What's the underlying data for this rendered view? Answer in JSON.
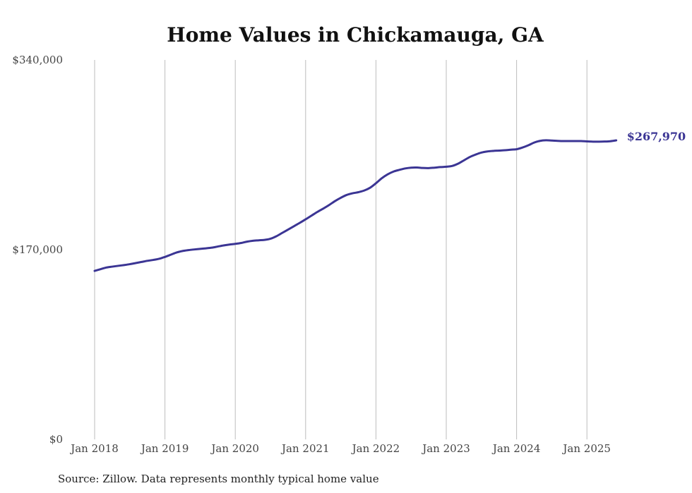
{
  "chart_data": {
    "type": "line",
    "title": "Home Values in Chickamauga, GA",
    "xlabel": "",
    "ylabel": "",
    "source": "Source: Zillow. Data represents monthly typical home value",
    "ylim": [
      0,
      340000
    ],
    "y_ticks": [
      {
        "value": 0,
        "label": "$0"
      },
      {
        "value": 170000,
        "label": "$170,000"
      },
      {
        "value": 340000,
        "label": "$340,000"
      }
    ],
    "xlim": [
      "2018-01",
      "2025-06"
    ],
    "x_ticks": [
      {
        "value": "2018-01",
        "label": "Jan 2018"
      },
      {
        "value": "2019-01",
        "label": "Jan 2019"
      },
      {
        "value": "2020-01",
        "label": "Jan 2020"
      },
      {
        "value": "2021-01",
        "label": "Jan 2021"
      },
      {
        "value": "2022-01",
        "label": "Jan 2022"
      },
      {
        "value": "2023-01",
        "label": "Jan 2023"
      },
      {
        "value": "2024-01",
        "label": "Jan 2024"
      },
      {
        "value": "2025-01",
        "label": "Jan 2025"
      }
    ],
    "grid": {
      "vertical": true,
      "horizontal": false
    },
    "legend": "none",
    "line_color": "#3b3594",
    "end_label": "$267,970",
    "series": [
      {
        "x": [
          "2018-01",
          "2018-02",
          "2018-03",
          "2018-04",
          "2018-05",
          "2018-06",
          "2018-07",
          "2018-08",
          "2018-09",
          "2018-10",
          "2018-11",
          "2018-12",
          "2019-01",
          "2019-02",
          "2019-03",
          "2019-04",
          "2019-05",
          "2019-06",
          "2019-07",
          "2019-08",
          "2019-09",
          "2019-10",
          "2019-11",
          "2019-12",
          "2020-01",
          "2020-02",
          "2020-03",
          "2020-04",
          "2020-05",
          "2020-06",
          "2020-07",
          "2020-08",
          "2020-09",
          "2020-10",
          "2020-11",
          "2020-12",
          "2021-01",
          "2021-02",
          "2021-03",
          "2021-04",
          "2021-05",
          "2021-06",
          "2021-07",
          "2021-08",
          "2021-09",
          "2021-10",
          "2021-11",
          "2021-12",
          "2022-01",
          "2022-02",
          "2022-03",
          "2022-04",
          "2022-05",
          "2022-06",
          "2022-07",
          "2022-08",
          "2022-09",
          "2022-10",
          "2022-11",
          "2022-12",
          "2023-01",
          "2023-02",
          "2023-03",
          "2023-04",
          "2023-05",
          "2023-06",
          "2023-07",
          "2023-08",
          "2023-09",
          "2023-10",
          "2023-11",
          "2023-12",
          "2024-01",
          "2024-02",
          "2024-03",
          "2024-04",
          "2024-05",
          "2024-06",
          "2024-07",
          "2024-08",
          "2024-09",
          "2024-10",
          "2024-11",
          "2024-12",
          "2025-01",
          "2025-02",
          "2025-03",
          "2025-04",
          "2025-05",
          "2025-06"
        ],
        "values": [
          151000,
          152500,
          154000,
          154800,
          155500,
          156200,
          157000,
          158000,
          159000,
          160000,
          160800,
          161800,
          163500,
          165500,
          167500,
          168800,
          169600,
          170200,
          170700,
          171200,
          171800,
          172800,
          173800,
          174600,
          175200,
          176000,
          177200,
          178000,
          178400,
          178800,
          179800,
          182000,
          185000,
          188000,
          191000,
          194000,
          197200,
          200500,
          203800,
          206800,
          210000,
          213500,
          216500,
          219000,
          220500,
          221500,
          223000,
          225500,
          229500,
          234000,
          237500,
          240000,
          241500,
          242800,
          243500,
          243600,
          243200,
          243100,
          243500,
          244000,
          244300,
          245000,
          247000,
          250000,
          253000,
          255200,
          257000,
          258000,
          258500,
          258800,
          259100,
          259600,
          260000,
          261500,
          263500,
          266000,
          267500,
          268000,
          267800,
          267500,
          267300,
          267300,
          267300,
          267300,
          267000,
          266800,
          266800,
          266900,
          267200,
          267970
        ]
      }
    ]
  }
}
